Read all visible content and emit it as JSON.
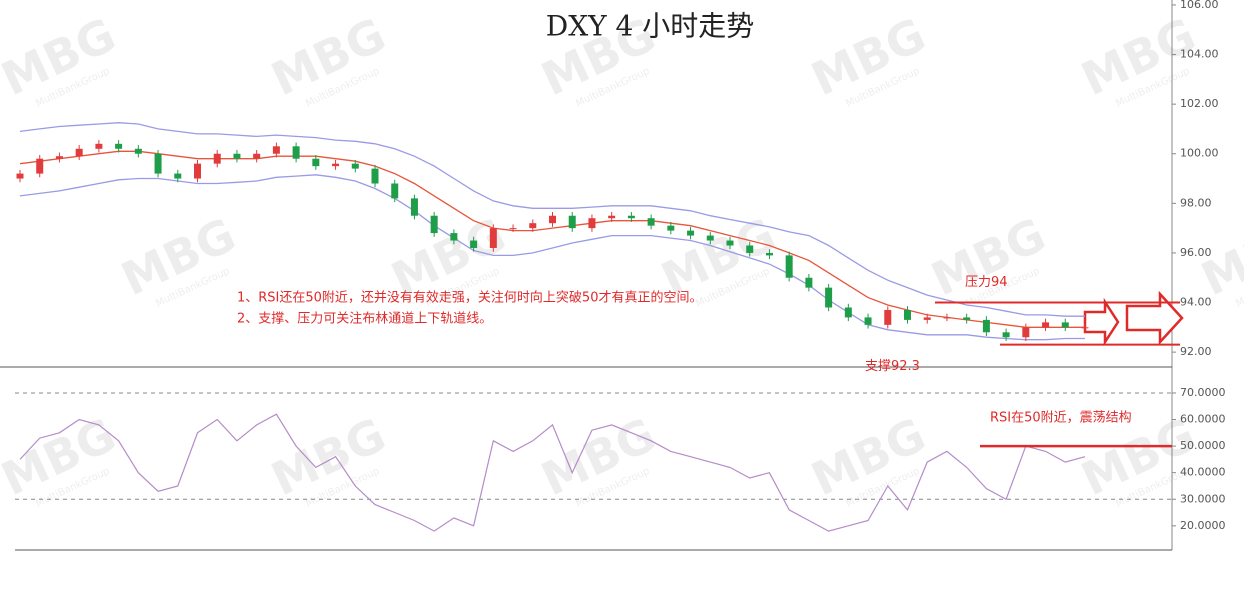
{
  "chart_data": [
    {
      "type": "candlestick",
      "title": "DXY 4 小时走势",
      "ylim": [
        91.4,
        106.2
      ],
      "yticks": [
        {
          "value": 106,
          "label": "106.00"
        },
        {
          "value": 104,
          "label": "104.00"
        },
        {
          "value": 102,
          "label": "102.00"
        },
        {
          "value": 100,
          "label": "100.00"
        },
        {
          "value": 98,
          "label": "98.00"
        },
        {
          "value": 96,
          "label": "96.00"
        },
        {
          "value": 94,
          "label": "94.00"
        },
        {
          "value": 92,
          "label": "92.00"
        }
      ],
      "up_color": "#e23b3b",
      "down_color": "#1f9e4a",
      "open": [
        99.0,
        99.2,
        99.8,
        99.9,
        100.2,
        100.4,
        100.2,
        100.0,
        99.2,
        99.0,
        99.6,
        100.0,
        99.8,
        100.0,
        100.3,
        99.8,
        99.5,
        99.6,
        99.4,
        98.8,
        98.2,
        97.5,
        96.8,
        96.5,
        96.2,
        97.0,
        97.0,
        97.2,
        97.5,
        97.0,
        97.4,
        97.5,
        97.4,
        97.1,
        96.9,
        96.7,
        96.5,
        96.3,
        96.0,
        95.9,
        95.0,
        94.6,
        93.8,
        93.4,
        93.1,
        93.7,
        93.3,
        93.4,
        93.4,
        93.3,
        92.8,
        92.6,
        93.0,
        93.2,
        93.0
      ],
      "high": [
        99.35,
        99.95,
        100.05,
        100.35,
        100.55,
        100.55,
        100.35,
        100.15,
        99.35,
        99.75,
        100.15,
        100.15,
        100.15,
        100.45,
        100.45,
        99.95,
        99.75,
        99.75,
        99.55,
        98.95,
        98.35,
        97.65,
        96.95,
        96.65,
        97.15,
        97.15,
        97.35,
        97.65,
        97.65,
        97.55,
        97.65,
        97.65,
        97.55,
        97.25,
        97.05,
        96.85,
        96.65,
        96.45,
        96.15,
        96.05,
        95.15,
        94.75,
        93.95,
        93.55,
        93.85,
        93.85,
        93.55,
        93.55,
        93.55,
        93.45,
        92.95,
        93.15,
        93.35,
        93.35,
        93.15
      ],
      "low": [
        98.85,
        99.05,
        99.65,
        99.75,
        100.05,
        100.05,
        99.85,
        99.05,
        98.85,
        98.85,
        99.45,
        99.65,
        99.65,
        99.85,
        99.65,
        99.35,
        99.35,
        99.25,
        98.65,
        98.05,
        97.35,
        96.65,
        96.35,
        96.05,
        96.05,
        96.85,
        96.85,
        97.05,
        96.85,
        96.85,
        97.25,
        97.25,
        96.95,
        96.75,
        96.55,
        96.35,
        96.15,
        95.85,
        95.75,
        94.85,
        94.45,
        93.65,
        93.25,
        92.95,
        92.95,
        93.15,
        93.15,
        93.25,
        93.15,
        92.65,
        92.45,
        92.45,
        92.85,
        92.85,
        92.85
      ],
      "close": [
        99.2,
        99.8,
        99.9,
        100.2,
        100.4,
        100.2,
        100.0,
        99.2,
        99.0,
        99.6,
        100.0,
        99.8,
        100.0,
        100.3,
        99.8,
        99.5,
        99.6,
        99.4,
        98.8,
        98.2,
        97.5,
        96.8,
        96.5,
        96.2,
        97.0,
        97.0,
        97.2,
        97.5,
        97.0,
        97.4,
        97.5,
        97.4,
        97.1,
        96.9,
        96.7,
        96.5,
        96.3,
        96.0,
        95.9,
        95.0,
        94.6,
        93.8,
        93.4,
        93.1,
        93.7,
        93.3,
        93.4,
        93.4,
        93.3,
        92.8,
        92.6,
        93.0,
        93.2,
        93.0,
        93.0
      ],
      "series": [
        {
          "color": "#9a9ae6",
          "values": [
            100.9,
            101.0,
            101.1,
            101.15,
            101.2,
            101.25,
            101.2,
            101.0,
            100.9,
            100.8,
            100.8,
            100.75,
            100.7,
            100.75,
            100.7,
            100.65,
            100.55,
            100.5,
            100.4,
            100.2,
            99.9,
            99.5,
            99.0,
            98.5,
            98.1,
            97.9,
            97.8,
            97.8,
            97.8,
            97.85,
            97.9,
            97.9,
            97.9,
            97.8,
            97.7,
            97.5,
            97.35,
            97.2,
            97.05,
            96.85,
            96.7,
            96.3,
            95.8,
            95.3,
            94.9,
            94.6,
            94.3,
            94.1,
            93.9,
            93.8,
            93.65,
            93.5,
            93.5,
            93.45,
            93.45
          ]
        },
        {
          "color": "#e8553a",
          "values": [
            99.6,
            99.7,
            99.8,
            99.9,
            100.0,
            100.1,
            100.1,
            100.0,
            99.9,
            99.8,
            99.8,
            99.8,
            99.8,
            99.9,
            99.9,
            99.9,
            99.8,
            99.7,
            99.5,
            99.2,
            98.8,
            98.3,
            97.8,
            97.3,
            97.0,
            96.9,
            96.9,
            97.0,
            97.1,
            97.2,
            97.3,
            97.3,
            97.3,
            97.2,
            97.1,
            96.9,
            96.7,
            96.5,
            96.3,
            96.0,
            95.7,
            95.2,
            94.7,
            94.2,
            93.9,
            93.7,
            93.5,
            93.4,
            93.3,
            93.2,
            93.1,
            93.0,
            93.0,
            93.0,
            93.0
          ]
        },
        {
          "color": "#9a9ae6",
          "values": [
            98.3,
            98.4,
            98.5,
            98.65,
            98.8,
            98.95,
            99.0,
            99.0,
            98.9,
            98.8,
            98.8,
            98.85,
            98.9,
            99.05,
            99.1,
            99.15,
            99.05,
            98.9,
            98.6,
            98.2,
            97.7,
            97.1,
            96.6,
            96.1,
            95.9,
            95.9,
            96.0,
            96.2,
            96.4,
            96.55,
            96.7,
            96.7,
            96.7,
            96.6,
            96.5,
            96.3,
            96.05,
            95.8,
            95.55,
            95.15,
            94.7,
            94.1,
            93.6,
            93.1,
            92.9,
            92.8,
            92.7,
            92.7,
            92.7,
            92.6,
            92.55,
            92.5,
            92.5,
            92.55,
            92.55
          ]
        }
      ],
      "annotations": [
        "1、RSI还在50附近，还并没有有效走强，关注何时向上突破50才有真正的空间。",
        "2、支撑、压力可关注布林通道上下轨道线。"
      ],
      "levels": [
        {
          "label": "压力94",
          "value": 94
        },
        {
          "label": "支撑92.3",
          "value": 92.3
        }
      ],
      "level_color": "#e02a2a",
      "watermark": "MBG",
      "watermark_sub": "MultiBankGroup"
    },
    {
      "type": "line",
      "ylim": [
        10.9,
        79.4
      ],
      "yticks": [
        {
          "value": 70,
          "label": "70.0000"
        },
        {
          "value": 60,
          "label": "60.0000"
        },
        {
          "value": 50,
          "label": "50.0000"
        },
        {
          "value": 40,
          "label": "40.0000"
        },
        {
          "value": 30,
          "label": "30.0000"
        },
        {
          "value": 20,
          "label": "20.0000"
        }
      ],
      "dashed_levels": [
        70,
        30
      ],
      "series": [
        {
          "color": "#b48cc8",
          "values": [
            45,
            53,
            55,
            60,
            58,
            52,
            40,
            33,
            35,
            55,
            60,
            52,
            58,
            62,
            50,
            42,
            46,
            35,
            28,
            25,
            22,
            18,
            23,
            20,
            52,
            48,
            52,
            58,
            40,
            56,
            58,
            55,
            52,
            48,
            46,
            44,
            42,
            38,
            40,
            26,
            22,
            18,
            20,
            22,
            35,
            26,
            44,
            48,
            42,
            34,
            30,
            50,
            48,
            44,
            46
          ]
        }
      ],
      "levels": [
        {
          "label": "RSI在50附近，震荡结构",
          "value": 50
        }
      ],
      "level_color": "#e02a2a"
    }
  ]
}
